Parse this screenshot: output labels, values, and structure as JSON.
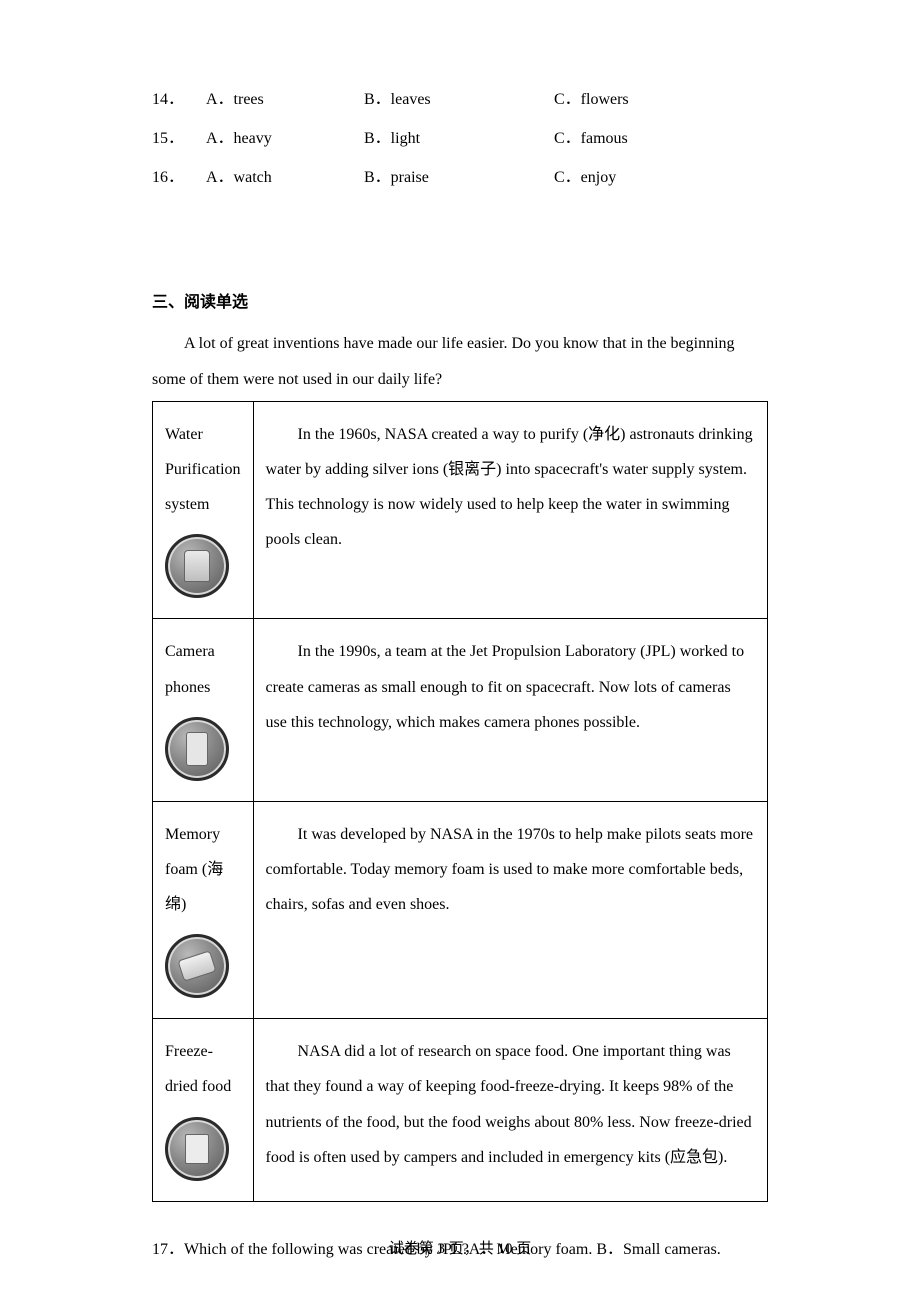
{
  "mc": [
    {
      "num": "14．",
      "a": "A．trees",
      "b": "B．leaves",
      "c": "C．flowers"
    },
    {
      "num": "15．",
      "a": "A．heavy",
      "b": "B．light",
      "c": "C．famous"
    },
    {
      "num": "16．",
      "a": "A．watch",
      "b": "B．praise",
      "c": "C．enjoy"
    }
  ],
  "section_title": "三、阅读单选",
  "intro": "A lot of great inventions have made our life easier. Do you know that in the beginning some of them were not used in our daily life?",
  "rows": [
    {
      "title": "Water Purification system",
      "body": "In the 1960s, NASA created a way to purify (净化) astronauts drinking water by adding silver ions (银离子) into spacecraft's water supply system. This technology is now widely used to help keep the water in swimming pools clean.",
      "icon": "bottles"
    },
    {
      "title": "Camera phones",
      "body": "In the 1990s, a team at the Jet Propulsion Laboratory (JPL) worked to create cameras as small enough to fit on spacecraft. Now lots of cameras use this technology, which makes camera phones possible.",
      "icon": "phone"
    },
    {
      "title": "Memory foam (海绵)",
      "body": "It was developed by NASA in the 1970s to help make pilots seats more comfortable. Today memory foam is used to make more comfortable beds, chairs, sofas and even shoes.",
      "icon": "foam"
    },
    {
      "title": "Freeze-dried food",
      "body": "NASA did a lot of research on space food. One important thing was that they found a way of keeping food-freeze-drying. It keeps 98% of the nutrients of the food, but the food weighs about 80% less. Now freeze-dried food is often used by campers and included in emergency kits (应急包).",
      "icon": "pack"
    }
  ],
  "q17": "17．Which of the following was created by JPL?A．Memory foam.  B．Small cameras.",
  "footer": "试卷第 3 页，共 10 页"
}
